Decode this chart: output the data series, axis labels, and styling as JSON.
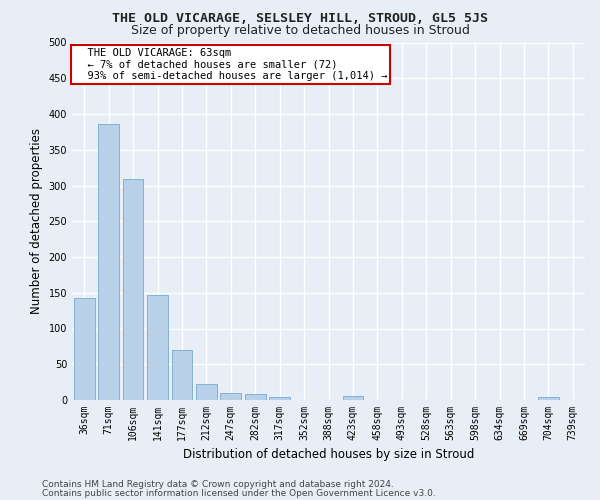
{
  "title": "THE OLD VICARAGE, SELSLEY HILL, STROUD, GL5 5JS",
  "subtitle": "Size of property relative to detached houses in Stroud",
  "xlabel": "Distribution of detached houses by size in Stroud",
  "ylabel": "Number of detached properties",
  "bar_color": "#b8d0e8",
  "bar_edge_color": "#7aaacf",
  "categories": [
    "36sqm",
    "71sqm",
    "106sqm",
    "141sqm",
    "177sqm",
    "212sqm",
    "247sqm",
    "282sqm",
    "317sqm",
    "352sqm",
    "388sqm",
    "423sqm",
    "458sqm",
    "493sqm",
    "528sqm",
    "563sqm",
    "598sqm",
    "634sqm",
    "669sqm",
    "704sqm",
    "739sqm"
  ],
  "values": [
    143,
    386,
    309,
    147,
    70,
    23,
    10,
    9,
    4,
    0,
    0,
    5,
    0,
    0,
    0,
    0,
    0,
    0,
    0,
    4,
    0
  ],
  "ylim": [
    0,
    500
  ],
  "yticks": [
    0,
    50,
    100,
    150,
    200,
    250,
    300,
    350,
    400,
    450,
    500
  ],
  "annotation_text": "  THE OLD VICARAGE: 63sqm\n  ← 7% of detached houses are smaller (72)\n  93% of semi-detached houses are larger (1,014) →",
  "annotation_box_color": "#ffffff",
  "annotation_box_edge_color": "#cc0000",
  "footer_line1": "Contains HM Land Registry data © Crown copyright and database right 2024.",
  "footer_line2": "Contains public sector information licensed under the Open Government Licence v3.0.",
  "background_color": "#e8eef6",
  "grid_color": "#ffffff",
  "title_fontsize": 9.5,
  "subtitle_fontsize": 9,
  "axis_label_fontsize": 8.5,
  "tick_fontsize": 7,
  "annotation_fontsize": 7.5,
  "footer_fontsize": 6.5
}
